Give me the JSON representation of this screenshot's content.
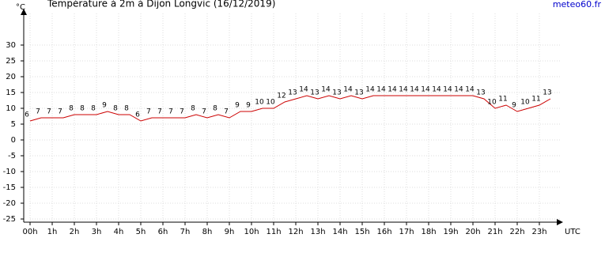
{
  "chart_data": {
    "type": "line",
    "title": "Température à 2m à Dijon Longvic (16/12/2019)",
    "source": "meteo60.fr",
    "y_unit": "°C",
    "x_unit": "UTC",
    "x": [
      0,
      0.5,
      1,
      1.5,
      2,
      2.5,
      3,
      3.5,
      4,
      4.5,
      5,
      5.5,
      6,
      6.5,
      7,
      7.5,
      8,
      8.5,
      9,
      9.5,
      10,
      10.5,
      11,
      11.5,
      12,
      12.5,
      13,
      13.5,
      14,
      14.5,
      15,
      15.5,
      16,
      16.5,
      17,
      17.5,
      18,
      18.5,
      19,
      19.5,
      20,
      20.5,
      21,
      21.5,
      22,
      22.5,
      23,
      23.5
    ],
    "series": [
      {
        "name": "Température",
        "color": "#cc0000",
        "values": [
          6,
          7,
          7,
          7,
          8,
          8,
          8,
          9,
          8,
          8,
          6,
          7,
          7,
          7,
          7,
          8,
          7,
          8,
          7,
          9,
          9,
          10,
          10,
          12,
          13,
          14,
          13,
          14,
          13,
          14,
          13,
          14,
          14,
          14,
          14,
          14,
          14,
          14,
          14,
          14,
          14,
          13,
          10,
          11,
          9,
          10,
          11,
          13
        ]
      }
    ],
    "xlim": [
      0,
      24
    ],
    "ylim": [
      -25,
      40
    ],
    "xticks": [
      {
        "value": 0,
        "label": "00h"
      },
      {
        "value": 1,
        "label": "1h"
      },
      {
        "value": 2,
        "label": "2h"
      },
      {
        "value": 3,
        "label": "3h"
      },
      {
        "value": 4,
        "label": "4h"
      },
      {
        "value": 5,
        "label": "5h"
      },
      {
        "value": 6,
        "label": "6h"
      },
      {
        "value": 7,
        "label": "7h"
      },
      {
        "value": 8,
        "label": "8h"
      },
      {
        "value": 9,
        "label": "9h"
      },
      {
        "value": 10,
        "label": "10h"
      },
      {
        "value": 11,
        "label": "11h"
      },
      {
        "value": 12,
        "label": "12h"
      },
      {
        "value": 13,
        "label": "13h"
      },
      {
        "value": 14,
        "label": "14h"
      },
      {
        "value": 15,
        "label": "15h"
      },
      {
        "value": 16,
        "label": "16h"
      },
      {
        "value": 17,
        "label": "17h"
      },
      {
        "value": 18,
        "label": "18h"
      },
      {
        "value": 19,
        "label": "19h"
      },
      {
        "value": 20,
        "label": "20h"
      },
      {
        "value": 21,
        "label": "21h"
      },
      {
        "value": 22,
        "label": "22h"
      },
      {
        "value": 23,
        "label": "23h"
      }
    ],
    "yticks": [
      -25,
      -20,
      -15,
      -10,
      -5,
      0,
      5,
      10,
      15,
      20,
      25,
      30
    ],
    "grid": true
  }
}
